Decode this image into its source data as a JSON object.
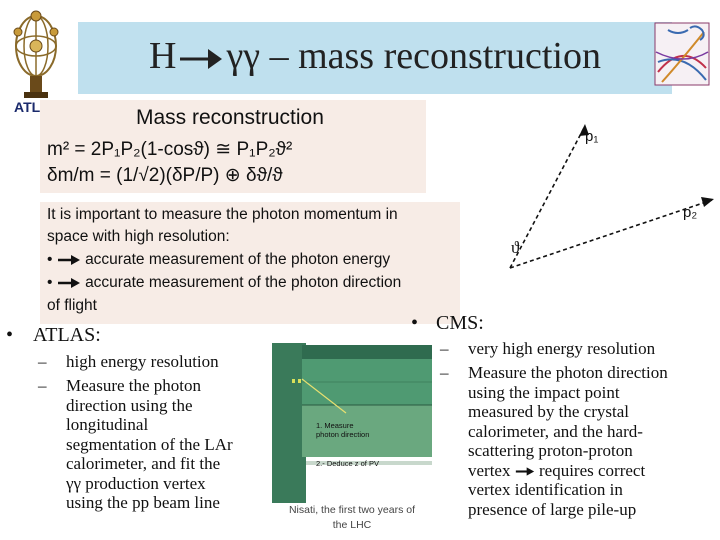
{
  "header": {
    "title_left": "H",
    "title_gamma": "γγ",
    "title_right": "– mass reconstruction",
    "atlas_label": "ATLAS"
  },
  "formula_box": {
    "heading": "Mass reconstruction",
    "formula1": "m² = 2P₁P₂(1-cosϑ) ≅ P₁P₂ϑ²",
    "formula2": "δm/m = (1/√2)(δP/P) ⊕ δϑ/ϑ"
  },
  "importance_box": {
    "line1": "It is important to measure the photon momentum in",
    "line2": "space with high resolution:",
    "line3_bullet": "•",
    "line3": "accurate measurement of the photon energy",
    "line4_bullet": "•",
    "line4": "accurate measurement  of the photon direction",
    "line5": "of flight"
  },
  "diagram": {
    "p1": "p₁",
    "p2": "p₂",
    "theta": "ϑ"
  },
  "atlas": {
    "bullet": "•",
    "heading": "ATLAS:",
    "items": [
      "high energy resolution",
      "Measure the photon direction using the longitudinal segmentation of the LAr calorimeter, and fit the γγ production vertex using the pp beam line"
    ],
    "item2_lines": [
      "Measure the photon",
      "direction using the",
      "longitudinal",
      "segmentation of the LAr",
      "calorimeter, and fit the",
      "γγ production vertex",
      "using the pp beam line"
    ]
  },
  "cms": {
    "bullet": "•",
    "heading": "CMS:",
    "item1": "very high energy resolution",
    "item2_lines": [
      "Measure the photon direction",
      "using the impact point",
      "measured by the crystal",
      "calorimeter, and the hard-",
      "scattering proton-proton",
      "vertex",
      "requires correct",
      "vertex identification in",
      "presence of large pile-up"
    ]
  },
  "figure": {
    "caption1": "1. Measure",
    "caption2": "photon direction",
    "caption3": "2.- Deduce z of PV"
  },
  "footer": {
    "line1": "Nisati, the first two years of",
    "line2": "the LHC"
  },
  "colors": {
    "title_band": "#bfe0ee",
    "box_bg": "#f7ece6",
    "atlas_text": "#1a2a6c",
    "detector_green": "#3a7a5a"
  }
}
